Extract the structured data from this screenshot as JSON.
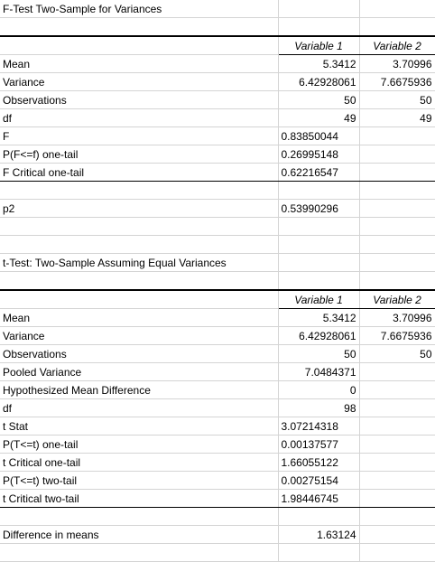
{
  "ftest": {
    "title": "F-Test Two-Sample for Variances",
    "headers": [
      "Variable 1",
      "Variable 2"
    ],
    "rows": [
      {
        "label": "Mean",
        "v1": "5.3412",
        "v2": "3.70996"
      },
      {
        "label": "Variance",
        "v1": "6.42928061",
        "v2": "7.6675936"
      },
      {
        "label": "Observations",
        "v1": "50",
        "v2": "50"
      },
      {
        "label": "df",
        "v1": "49",
        "v2": "49"
      },
      {
        "label": "F",
        "v1": "0.83850044",
        "v2": ""
      },
      {
        "label": "P(F<=f) one-tail",
        "v1": "0.26995148",
        "v2": ""
      },
      {
        "label": "F Critical one-tail",
        "v1": "0.62216547",
        "v2": ""
      }
    ],
    "p2_label": "p2",
    "p2_value": "0.53990296"
  },
  "ttest": {
    "title": "t-Test: Two-Sample Assuming Equal Variances",
    "headers": [
      "Variable 1",
      "Variable 2"
    ],
    "rows": [
      {
        "label": "Mean",
        "v1": "5.3412",
        "v2": "3.70996"
      },
      {
        "label": "Variance",
        "v1": "6.42928061",
        "v2": "7.6675936"
      },
      {
        "label": "Observations",
        "v1": "50",
        "v2": "50"
      },
      {
        "label": "Pooled Variance",
        "v1": "7.0484371",
        "v2": ""
      },
      {
        "label": "Hypothesized Mean Difference",
        "v1": "0",
        "v2": ""
      },
      {
        "label": "df",
        "v1": "98",
        "v2": ""
      },
      {
        "label": "t Stat",
        "v1": "3.07214318",
        "v2": ""
      },
      {
        "label": "P(T<=t) one-tail",
        "v1": "0.00137577",
        "v2": ""
      },
      {
        "label": "t Critical one-tail",
        "v1": "1.66055122",
        "v2": ""
      },
      {
        "label": "P(T<=t) two-tail",
        "v1": "0.00275154",
        "v2": ""
      },
      {
        "label": "t Critical two-tail",
        "v1": "1.98446745",
        "v2": ""
      }
    ],
    "diff_label": "Difference in means",
    "diff_value": "1.63124"
  }
}
